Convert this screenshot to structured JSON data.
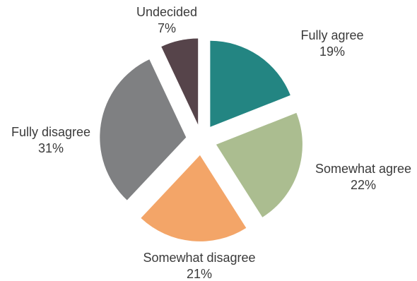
{
  "chart_data": {
    "type": "pie",
    "exploded": true,
    "slices": [
      {
        "label": "Fully agree",
        "value": 19,
        "value_label": "19%",
        "color": "#238582"
      },
      {
        "label": "Somewhat agree",
        "value": 22,
        "value_label": "22%",
        "color": "#abbd90"
      },
      {
        "label": "Somewhat disagree",
        "value": 21,
        "value_label": "21%",
        "color": "#f3a568"
      },
      {
        "label": "Fully disagree",
        "value": 31,
        "value_label": "31%",
        "color": "#7f8082"
      },
      {
        "label": "Undecided",
        "value": 7,
        "value_label": "7%",
        "color": "#56444a"
      }
    ]
  }
}
